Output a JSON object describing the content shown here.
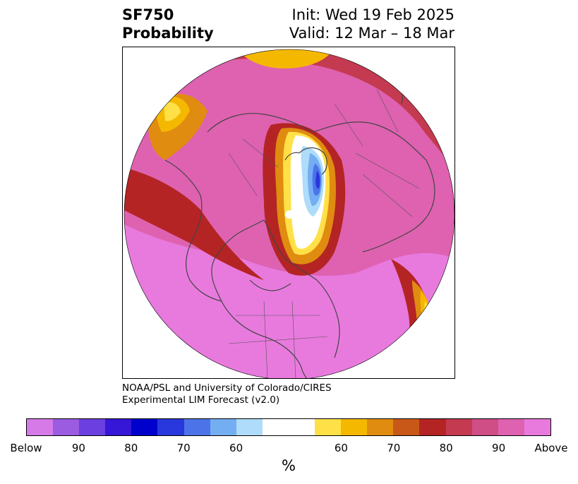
{
  "title": {
    "left_line1": "SF750",
    "left_line2": "Probability",
    "right_line1": "Init: Wed 19 Feb 2025",
    "right_line2": "Valid: 12 Mar – 18 Mar"
  },
  "credits": {
    "line1": "NOAA/PSL and University of Colorado/CIRES",
    "line2": "Experimental LIM Forecast (v2.0)"
  },
  "colorbar": {
    "unit": "%",
    "colors": [
      "#d67ae8",
      "#9b5ce2",
      "#6b3fe0",
      "#3616d7",
      "#0000cd",
      "#2838dc",
      "#4c74e8",
      "#74aef2",
      "#aedcfa",
      "#ffffff",
      "#ffe047",
      "#f5b800",
      "#e08c10",
      "#c85818",
      "#b42424",
      "#c43a50",
      "#d04e86",
      "#de62b0",
      "#e87ade"
    ],
    "tick_labels": [
      "Below",
      "90",
      "80",
      "70",
      "60",
      "60",
      "70",
      "80",
      "90",
      "Above"
    ]
  },
  "map": {
    "projection": "north-polar-stereographic",
    "region": "Northern Hemisphere"
  }
}
